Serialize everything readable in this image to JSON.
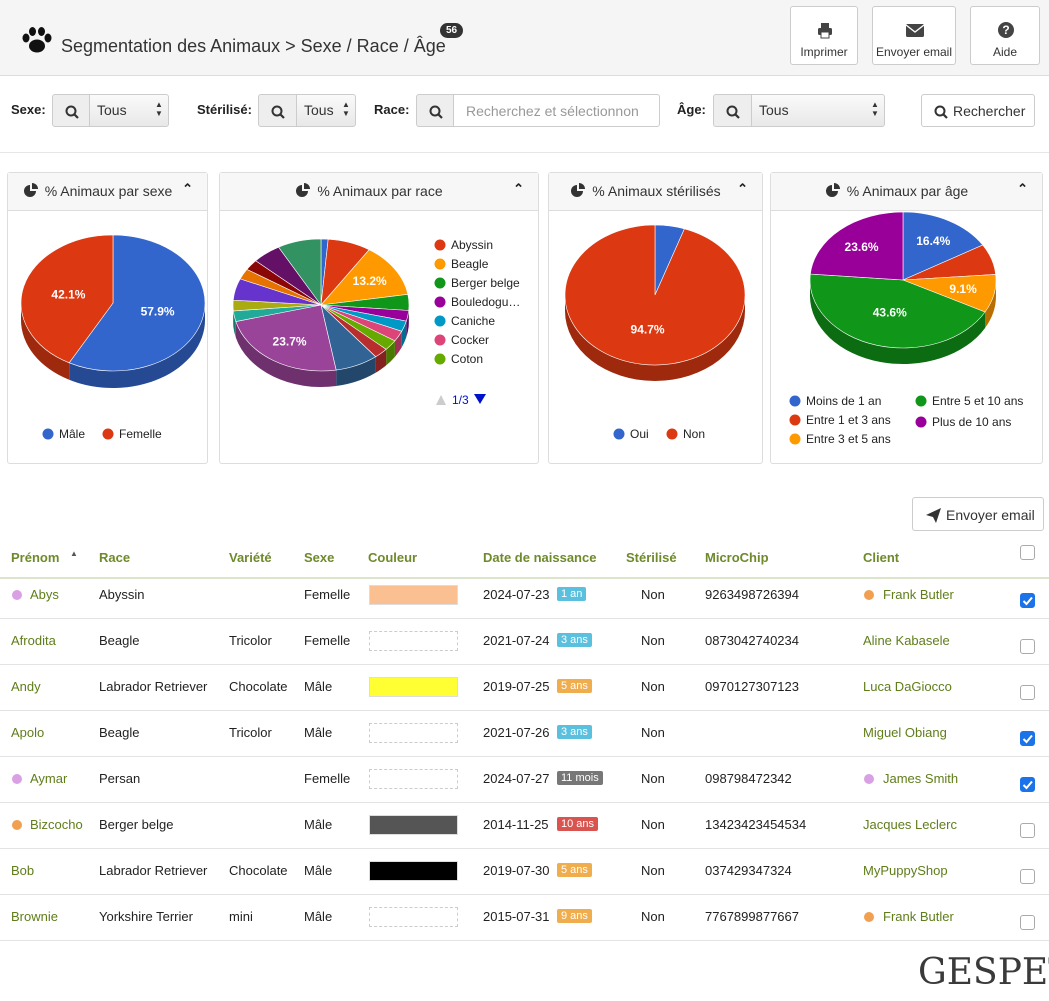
{
  "header": {
    "title": "Segmentation des Animaux > Sexe / Race / Âge",
    "count": 56,
    "buttons": [
      "Imprimer",
      "Envoyer email",
      "Aide"
    ]
  },
  "filters": [
    {
      "label": "Sexe:",
      "value": "Tous"
    },
    {
      "label": "Stérilisé:",
      "value": "Tous"
    },
    {
      "label": "Race:",
      "placeholder": "Recherchez et sélectionnon"
    },
    {
      "label": "Âge:",
      "value": "Tous"
    }
  ],
  "search_button": "Rechercher",
  "chart_data": [
    {
      "type": "pie",
      "title": "% Animaux par sexe",
      "categories": [
        "Mâle",
        "Femelle"
      ],
      "values": [
        57.9,
        42.1
      ],
      "value_labels": [
        "57.9%",
        "42.1%"
      ],
      "colors": [
        "#3366cc",
        "#dc3912"
      ]
    },
    {
      "type": "pie",
      "title": "% Animaux par race",
      "categories": [
        null,
        "Abyssin",
        "Beagle",
        "Berger belge",
        "Bouledogu…",
        "Caniche",
        "Cocker",
        "Coton",
        null,
        null,
        null,
        null,
        null,
        null,
        null,
        null,
        null,
        null
      ],
      "values": [
        1.3,
        7.9,
        13.2,
        3.9,
        2.6,
        2.6,
        2.6,
        2.6,
        2.6,
        7.9,
        23.7,
        2.6,
        2.6,
        5.3,
        2.6,
        2.6,
        5.3,
        8.0
      ],
      "value_labels": [
        null,
        null,
        "13.2%",
        null,
        null,
        null,
        null,
        null,
        null,
        null,
        "23.7%",
        null,
        null,
        null,
        null,
        null,
        null,
        null
      ],
      "colors": [
        "#3366cc",
        "#dc3912",
        "#ff9900",
        "#109618",
        "#990099",
        "#0099c6",
        "#dd4477",
        "#66aa00",
        "#b82e2e",
        "#316395",
        "#994499",
        "#22aa99",
        "#aaaa11",
        "#6633cc",
        "#e67300",
        "#8b0707",
        "#651067",
        "#329262"
      ],
      "legend_page": "1/3"
    },
    {
      "type": "pie",
      "title": "% Animaux stérilisés",
      "categories": [
        "Oui",
        "Non"
      ],
      "values": [
        5.3,
        94.7
      ],
      "value_labels": [
        null,
        "94.7%"
      ],
      "colors": [
        "#3366cc",
        "#dc3912"
      ]
    },
    {
      "type": "pie",
      "title": "% Animaux par âge",
      "categories": [
        "Moins de 1 an",
        "Entre 1 et 3 ans",
        "Entre 3 et 5 ans",
        "Entre 5 et 10 ans",
        "Plus de 10 ans"
      ],
      "values": [
        16.4,
        7.3,
        9.1,
        43.6,
        23.6
      ],
      "value_labels": [
        "16.4%",
        null,
        "9.1%",
        "43.6%",
        "23.6%"
      ],
      "colors": [
        "#3366cc",
        "#dc3912",
        "#ff9900",
        "#109618",
        "#990099"
      ]
    }
  ],
  "email_button": "Envoyer email",
  "table": {
    "columns": [
      "Prénom",
      "Race",
      "Variété",
      "Sexe",
      "Couleur",
      "Date de naissance",
      "Stérilisé",
      "MicroChip",
      "Client"
    ],
    "rows": [
      {
        "prenom": "Abys",
        "dot": "#d9a0e3",
        "race": "Abyssin",
        "variete": null,
        "sexe": "Femelle",
        "couleur": "#fac091",
        "date": "2024-07-23",
        "age": "1 an",
        "age_color": "#5bc0de",
        "sterilise": "Non",
        "microchip": "9263498726394",
        "client": "Frank Butler",
        "client_dot": "#f0a050",
        "checked": true
      },
      {
        "prenom": "Afrodita",
        "dot": null,
        "race": "Beagle",
        "variete": "Tricolor",
        "sexe": "Femelle",
        "couleur": null,
        "date": "2021-07-24",
        "age": "3 ans",
        "age_color": "#5bc0de",
        "sterilise": "Non",
        "microchip": "0873042740234",
        "client": "Aline Kabasele",
        "client_dot": null,
        "checked": false
      },
      {
        "prenom": "Andy",
        "dot": null,
        "race": "Labrador Retriever",
        "variete": "Chocolate",
        "sexe": "Mâle",
        "couleur": "#ffff33",
        "date": "2019-07-25",
        "age": "5 ans",
        "age_color": "#f0ad4e",
        "sterilise": "Non",
        "microchip": "0970127307123",
        "client": "Luca DaGiocco",
        "client_dot": null,
        "checked": false
      },
      {
        "prenom": "Apolo",
        "dot": null,
        "race": "Beagle",
        "variete": "Tricolor",
        "sexe": "Mâle",
        "couleur": null,
        "date": "2021-07-26",
        "age": "3 ans",
        "age_color": "#5bc0de",
        "sterilise": "Non",
        "microchip": null,
        "client": "Miguel Obiang",
        "client_dot": null,
        "checked": true
      },
      {
        "prenom": "Aymar",
        "dot": "#d9a0e3",
        "race": "Persan",
        "variete": null,
        "sexe": "Femelle",
        "couleur": null,
        "date": "2024-07-27",
        "age": "11 mois",
        "age_color": "#777777",
        "sterilise": "Non",
        "microchip": "098798472342",
        "client": "James Smith",
        "client_dot": "#d9a0e3",
        "checked": true
      },
      {
        "prenom": "Bizcocho",
        "dot": "#f0a050",
        "race": "Berger belge",
        "variete": null,
        "sexe": "Mâle",
        "couleur": "#555555",
        "date": "2014-11-25",
        "age": "10 ans",
        "age_color": "#d9534f",
        "sterilise": "Non",
        "microchip": "13423423454534",
        "client": "Jacques Leclerc",
        "client_dot": null,
        "checked": false
      },
      {
        "prenom": "Bob",
        "dot": null,
        "race": "Labrador Retriever",
        "variete": "Chocolate",
        "sexe": "Mâle",
        "couleur": "#000000",
        "date": "2019-07-30",
        "age": "5 ans",
        "age_color": "#f0ad4e",
        "sterilise": "Non",
        "microchip": "037429347324",
        "client": "MyPuppyShop",
        "client_dot": null,
        "checked": false
      },
      {
        "prenom": "Brownie",
        "dot": null,
        "race": "Yorkshire Terrier",
        "variete": "mini",
        "sexe": "Mâle",
        "couleur": null,
        "date": "2015-07-31",
        "age": "9 ans",
        "age_color": "#f0ad4e",
        "sterilise": "Non",
        "microchip": "7767899877667",
        "client": "Frank Butler",
        "client_dot": "#f0a050",
        "checked": false
      }
    ]
  },
  "logo": "GESPET"
}
